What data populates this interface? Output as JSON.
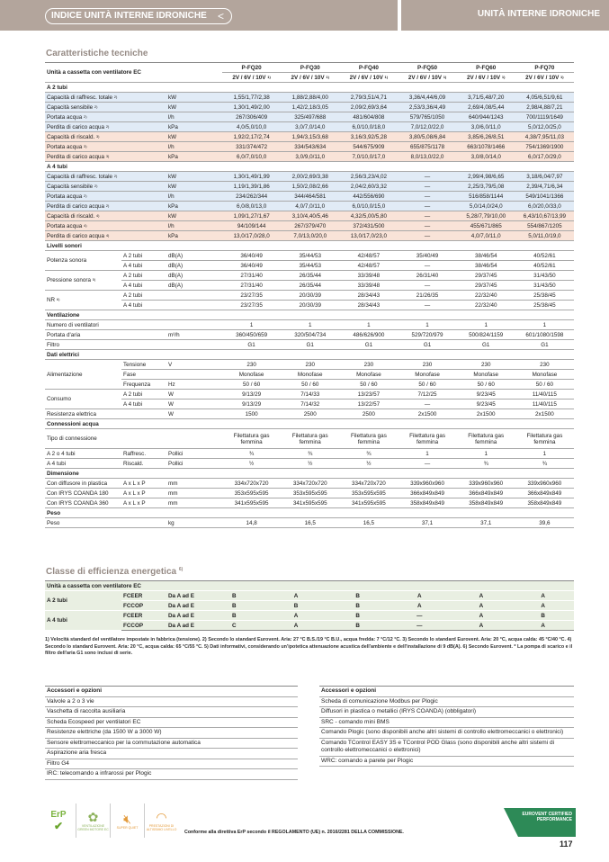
{
  "header": {
    "index_label": "INDICE UNITÀ INTERNE IDRONICHE",
    "back_icon": "chevron-left-icon",
    "section_title": "UNITÀ INTERNE IDRONICHE"
  },
  "spec": {
    "title": "Caratteristiche tecniche",
    "unit_label": "Unità a cassetta con ventilatore EC",
    "models": [
      "P-FQ20",
      "P-FQ30",
      "P-FQ40",
      "P-FQ50",
      "P-FQ60",
      "P-FQ70"
    ],
    "speed_label": "2V / 6V / 10V",
    "speed_note": "1)",
    "rows": [
      {
        "kind": "section",
        "label": "A 2 tubi"
      },
      {
        "kind": "row",
        "tone": "cool",
        "label": "Capacità di raffresc. totale",
        "note": "2)",
        "unit": "kW",
        "values": [
          "1,55/1,77/2,38",
          "1,88/2,88/4,00",
          "2,79/3,51/4,71",
          "3,36/4,44/6,09",
          "3,71/5,48/7,20",
          "4,05/6,51/9,61"
        ]
      },
      {
        "kind": "row",
        "tone": "cool",
        "label": "Capacità sensibile",
        "note": "2)",
        "unit": "kW",
        "values": [
          "1,30/1,49/2,00",
          "1,42/2,18/3,05",
          "2,09/2,69/3,64",
          "2,53/3,36/4,49",
          "2,69/4,08/5,44",
          "2,98/4,88/7,21"
        ]
      },
      {
        "kind": "row",
        "tone": "cool",
        "label": "Portata acqua",
        "note": "2)",
        "unit": "l/h",
        "values": [
          "267/306/409",
          "325/497/688",
          "481/604/808",
          "579/765/1050",
          "640/944/1243",
          "700/1119/1649"
        ]
      },
      {
        "kind": "row",
        "tone": "cool",
        "label": "Perdita di carico acqua",
        "note": "2)",
        "unit": "kPa",
        "values": [
          "4,0/5,0/10,0",
          "3,0/7,0/14,0",
          "6,0/10,0/18,0",
          "7,0/12,0/22,0",
          "3,0/6,0/11,0",
          "5,0/12,0/25,0"
        ]
      },
      {
        "kind": "row",
        "tone": "heat",
        "label": "Capacità di riscald.",
        "note": "3)",
        "unit": "kW",
        "values": [
          "1,92/2,17/2,74",
          "1,94/3,15/3,68",
          "3,16/3,92/5,28",
          "3,80/5,08/6,84",
          "3,85/6,26/8,51",
          "4,38/7,95/11,03"
        ]
      },
      {
        "kind": "row",
        "tone": "heat",
        "label": "Portata acqua",
        "note": "3)",
        "unit": "l/h",
        "values": [
          "331/374/472",
          "334/543/634",
          "544/675/909",
          "655/875/1178",
          "663/1078/1466",
          "754/1369/1900"
        ]
      },
      {
        "kind": "row",
        "tone": "heat",
        "label": "Perdita di carico acqua",
        "note": "3)",
        "unit": "kPa",
        "values": [
          "6,0/7,0/10,0",
          "3,0/9,0/11,0",
          "7,0/10,0/17,0",
          "8,0/13,0/22,0",
          "3,0/8,0/14,0",
          "6,0/17,0/29,0"
        ]
      },
      {
        "kind": "section",
        "label": "A 4 tubi"
      },
      {
        "kind": "row",
        "tone": "cool",
        "label": "Capacità di raffresc. totale",
        "note": "2)",
        "unit": "kW",
        "values": [
          "1,30/1,49/1,99",
          "2,00/2,69/3,38",
          "2,56/3,23/4,02",
          "—",
          "2,99/4,98/6,65",
          "3,18/6,04/7,97"
        ]
      },
      {
        "kind": "row",
        "tone": "cool",
        "label": "Capacità sensibile",
        "note": "2)",
        "unit": "kW",
        "values": [
          "1,19/1,39/1,86",
          "1,50/2,08/2,66",
          "2,04/2,60/3,32",
          "—",
          "2,25/3,79/5,08",
          "2,39/4,71/6,34"
        ]
      },
      {
        "kind": "row",
        "tone": "cool",
        "label": "Portata acqua",
        "note": "2)",
        "unit": "l/h",
        "values": [
          "234/262/344",
          "344/464/581",
          "442/556/690",
          "—",
          "516/858/1144",
          "549/1041/1366"
        ]
      },
      {
        "kind": "row",
        "tone": "cool",
        "label": "Perdita di carico acqua",
        "note": "2)",
        "unit": "kPa",
        "values": [
          "6,0/8,0/13,0",
          "4,0/7,0/11,0",
          "6,0/10,0/15,0",
          "—",
          "5,0/14,0/24,0",
          "6,0/20,0/33,0"
        ]
      },
      {
        "kind": "row",
        "tone": "heat",
        "label": "Capacità di riscald.",
        "note": "4)",
        "unit": "kW",
        "values": [
          "1,09/1,27/1,67",
          "3,10/4,40/5,46",
          "4,32/5,00/5,80",
          "—",
          "5,28/7,79/10,00",
          "6,43/10,67/13,99"
        ]
      },
      {
        "kind": "row",
        "tone": "heat",
        "label": "Portata acqua",
        "note": "4)",
        "unit": "l/h",
        "values": [
          "94/109/144",
          "267/379/470",
          "372/431/500",
          "—",
          "455/671/865",
          "554/867/1205"
        ]
      },
      {
        "kind": "row",
        "tone": "heat",
        "label": "Perdita di carico acqua",
        "note": "4)",
        "unit": "kPa",
        "values": [
          "13,0/17,0/28,0",
          "7,0/13,0/20,0",
          "13,0/17,0/23,0",
          "—",
          "4,0/7,0/11,0",
          "5,0/11,0/19,0"
        ]
      },
      {
        "kind": "section",
        "label": "Livelli sonori"
      },
      {
        "kind": "group",
        "label": "Potenza sonora",
        "rows": [
          {
            "sub": "A 2 tubi",
            "unit": "dB(A)",
            "values": [
              "36/40/49",
              "35/44/53",
              "42/48/57",
              "35/40/49",
              "38/46/54",
              "40/52/61"
            ]
          },
          {
            "sub": "A 4 tubi",
            "unit": "dB(A)",
            "values": [
              "36/40/49",
              "35/44/53",
              "42/48/57",
              "—",
              "38/46/54",
              "40/52/61"
            ]
          }
        ]
      },
      {
        "kind": "group",
        "label": "Pressione sonora",
        "note": "5)",
        "rows": [
          {
            "sub": "A 2 tubi",
            "unit": "dB(A)",
            "values": [
              "27/31/40",
              "26/35/44",
              "33/39/48",
              "26/31/40",
              "29/37/45",
              "31/43/50"
            ]
          },
          {
            "sub": "A 4 tubi",
            "unit": "dB(A)",
            "values": [
              "27/31/40",
              "26/35/44",
              "33/39/48",
              "—",
              "29/37/45",
              "31/43/50"
            ]
          }
        ]
      },
      {
        "kind": "group",
        "label": "NR",
        "note": "6)",
        "rows": [
          {
            "sub": "A 2 tubi",
            "unit": "",
            "values": [
              "23/27/35",
              "20/30/39",
              "28/34/43",
              "21/26/35",
              "22/32/40",
              "25/38/45"
            ]
          },
          {
            "sub": "A 4 tubi",
            "unit": "",
            "values": [
              "23/27/35",
              "20/30/39",
              "28/34/43",
              "—",
              "22/32/40",
              "25/38/45"
            ]
          }
        ]
      },
      {
        "kind": "section",
        "label": "Ventilazione"
      },
      {
        "kind": "row",
        "label": "Numero di ventilatori",
        "unit": "",
        "values": [
          "1",
          "1",
          "1",
          "1",
          "1",
          "1"
        ]
      },
      {
        "kind": "row",
        "label": "Portata d'aria",
        "unit": "m³/h",
        "values": [
          "360/450/659",
          "320/504/734",
          "486/626/900",
          "529/720/979",
          "500/824/1159",
          "601/1080/1598"
        ]
      },
      {
        "kind": "row",
        "label": "Filtro",
        "unit": "",
        "values": [
          "G1",
          "G1",
          "G1",
          "G1",
          "G1",
          "G1"
        ]
      },
      {
        "kind": "section",
        "label": "Dati elettrici"
      },
      {
        "kind": "group",
        "label": "Alimentazione",
        "rows": [
          {
            "sub": "Tensione",
            "unit": "V",
            "values": [
              "230",
              "230",
              "230",
              "230",
              "230",
              "230"
            ]
          },
          {
            "sub": "Fase",
            "unit": "",
            "values": [
              "Monofase",
              "Monofase",
              "Monofase",
              "Monofase",
              "Monofase",
              "Monofase"
            ]
          },
          {
            "sub": "Frequenza",
            "unit": "Hz",
            "values": [
              "50 / 60",
              "50 / 60",
              "50 / 60",
              "50 / 60",
              "50 / 60",
              "50 / 60"
            ]
          }
        ]
      },
      {
        "kind": "group",
        "label": "Consumo",
        "rows": [
          {
            "sub": "A 2 tubi",
            "unit": "W",
            "values": [
              "9/13/29",
              "7/14/33",
              "13/23/57",
              "7/12/25",
              "9/23/45",
              "11/40/115"
            ]
          },
          {
            "sub": "A 4 tubi",
            "unit": "W",
            "values": [
              "9/13/29",
              "7/14/32",
              "13/22/57",
              "—",
              "9/23/45",
              "11/40/115"
            ]
          }
        ]
      },
      {
        "kind": "row",
        "label": "Resistenza elettrica",
        "unit": "W",
        "values": [
          "1500",
          "2500",
          "2500",
          "2x1500",
          "2x1500",
          "2x1500"
        ]
      },
      {
        "kind": "section",
        "label": "Connessioni acqua"
      },
      {
        "kind": "row",
        "tall": true,
        "label": "Tipo di connessione",
        "unit": "",
        "values": [
          "Filettatura gas femmina",
          "Filettatura gas femmina",
          "Filettatura gas femmina",
          "Filettatura gas femmina",
          "Filettatura gas femmina",
          "Filettatura gas femmina"
        ]
      },
      {
        "kind": "row",
        "label": "A 2 o 4 tubi",
        "sub": "Raffresc.",
        "unit": "Pollici",
        "values": [
          "¾",
          "¾",
          "¾",
          "1",
          "1",
          "1"
        ]
      },
      {
        "kind": "row",
        "label": "A 4 tubi",
        "sub": "Riscald.",
        "unit": "Pollici",
        "values": [
          "½",
          "½",
          "½",
          "—",
          "¾",
          "¾"
        ]
      },
      {
        "kind": "section",
        "label": "Dimensione"
      },
      {
        "kind": "row",
        "label": "Con diffusore in plastica",
        "sub": "A x L x P",
        "unit": "mm",
        "values": [
          "334x720x720",
          "334x720x720",
          "334x720x720",
          "339x960x960",
          "339x960x960",
          "339x960x960"
        ]
      },
      {
        "kind": "row",
        "label": "Con IRYS COANDA 180",
        "sub": "A x L x P",
        "unit": "mm",
        "values": [
          "353x595x595",
          "353x595x595",
          "353x595x595",
          "366x849x849",
          "366x849x849",
          "366x849x849"
        ]
      },
      {
        "kind": "row",
        "label": "Con IRYS COANDA 360",
        "sub": "A x L x P",
        "unit": "mm",
        "values": [
          "341x595x595",
          "341x595x595",
          "341x595x595",
          "358x849x849",
          "358x849x849",
          "358x849x849"
        ]
      },
      {
        "kind": "section",
        "label": "Peso"
      },
      {
        "kind": "row",
        "label": "Peso",
        "unit": "kg",
        "values": [
          "14,8",
          "16,5",
          "16,5",
          "37,1",
          "37,1",
          "39,6"
        ]
      }
    ]
  },
  "efficiency": {
    "title": "Classe di efficienza energetica",
    "note": "6)",
    "unit_label": "Unità a cassetta con ventilatore EC",
    "groups": [
      {
        "label": "A 2 tubi",
        "rows": [
          {
            "index": "FCEER",
            "scale": "Da A ad E",
            "values": [
              "B",
              "A",
              "B",
              "A",
              "A",
              "A"
            ]
          },
          {
            "index": "FCCOP",
            "scale": "Da A ad E",
            "values": [
              "B",
              "B",
              "B",
              "A",
              "A",
              "A"
            ]
          }
        ]
      },
      {
        "label": "A 4 tubi",
        "rows": [
          {
            "index": "FCEER",
            "scale": "Da A ad E",
            "values": [
              "B",
              "A",
              "B",
              "—",
              "A",
              "B"
            ]
          },
          {
            "index": "FCCOP",
            "scale": "Da A ad E",
            "values": [
              "C",
              "A",
              "B",
              "—",
              "A",
              "A"
            ]
          }
        ]
      }
    ]
  },
  "footnote": "1) Velocità standard del ventilatore impostate in fabbrica (tensione). 2) Secondo lo standard Eurovent. Aria: 27 °C B.S./19 °C B.U., acqua fredda: 7 °C/12 °C. 3) Secondo lo standard Eurovent. Aria: 20 °C, acqua calda: 45 °C/40 °C. 4) Secondo lo standard Eurovent. Aria: 20 °C, acqua calda: 65 °C/55 °C. 5) Dati informativi, considerando un'ipotetica attenuazione acustica dell'ambiente e dell'installazione di 9 dB(A). 6) Secondo Eurovent. * La pompa di scarico e il filtro dell'aria G1 sono inclusi di serie.",
  "accessories_left": {
    "title": "Accessori e opzioni",
    "items": [
      "Valvole a 2 o 3 vie",
      "Vaschetta di raccolta ausiliaria",
      "Scheda Ecospeed per ventilatori EC",
      "Resistenze elettriche (da 1500 W a 3000 W)",
      "Sensore elettromeccanico per la commutazione automatica",
      "Aspirazione aria fresca",
      "Filtro G4",
      "IRC: telecomando a infrarossi per Plogic"
    ]
  },
  "accessories_right": {
    "title": "Accessori e opzioni",
    "items": [
      "Scheda di comunicazione Modbus per Plogic",
      "Diffusori in plastica o metallici (IRYS COANDA) (obbligatori)",
      "SRC - comando mini BMS",
      "Comando Plogic (sono disponibili anche altri sistemi di controllo elettromeccanici o elettronici)",
      "Comando TControl EASY 3S e TControl POD Glass (sono disponibili anche altri sistemi di controllo elettromeccanici o elettronici)",
      "WRC: comando a parete per Plogic"
    ]
  },
  "badges": {
    "erp": "ErP",
    "green": "VENTILAZIONE GREEN MOTORE EC",
    "quiet": "SUPER QUIET",
    "perf": "PRESTAZIONI DI ALTISSIMO LIVELLO",
    "erp_text": "Conforme alla direttiva ErP secondo il REGOLAMENTO (UE) n. 2016/2281 DELLA COMMISSIONE.",
    "eurovent": "EUROVENT CERTIFIED PERFORMANCE"
  },
  "page_number": "117",
  "colors": {
    "header_bar": "#b3a59c",
    "cooling_row": "#e1ebf6",
    "heating_row": "#f9e3d8",
    "efficiency_bg": "#e9efe2"
  }
}
